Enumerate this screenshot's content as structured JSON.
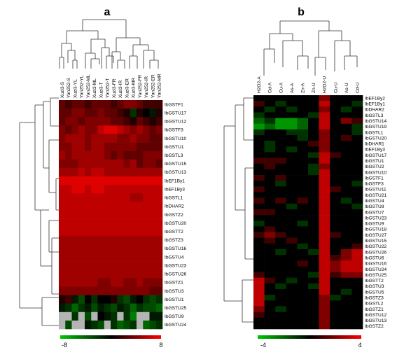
{
  "panel_a": {
    "letter": "a",
    "columns": [
      "Xuzi3-S",
      "Yan252-S",
      "Xuzi3-YL",
      "Yan252-YL",
      "Yan252-ML",
      "Xuzi3-ML",
      "Xuzi3-T",
      "Yan252-T",
      "Xuzi3-FR",
      "Xuzi3-IR",
      "Xuzi3-ER",
      "Xuzi3-MR",
      "Yan252-FR",
      "Yan252-IR",
      "Yan252-ER",
      "Yan252-MR"
    ],
    "rows": [
      "IbGSTF1",
      "IbGSTU17",
      "IbGSTU12",
      "IbGSTF3",
      "IbGSTU10",
      "IbGSTU1",
      "IbGSTL3",
      "IbGSTU15",
      "IbGSTU13",
      "IbEF1By1",
      "IbEF1By3",
      "IbGSTL1",
      "IbDHAR2",
      "IbGSTZ2",
      "IbGSTU20",
      "IbGSTT2",
      "IbGSTZ3",
      "IbGSTU16",
      "IbGSTU4",
      "IbGSTU23",
      "IbGSTU26",
      "IbGSTZ1",
      "IbGSTU3",
      "IbGSTU1",
      "IbGSTU25",
      "IbGSTU9",
      "IbGSTU24"
    ],
    "scale_min": "-8",
    "scale_max": "8",
    "values": [
      [
        3,
        2,
        3,
        3,
        2,
        3,
        3,
        3,
        2,
        3,
        4,
        4,
        3,
        2,
        2,
        2
      ],
      [
        3,
        3,
        4,
        4,
        3,
        3,
        4,
        3,
        3,
        2,
        1,
        -2,
        1,
        0,
        -1,
        1
      ],
      [
        3,
        4,
        4,
        3,
        4,
        4,
        4,
        4,
        3,
        3,
        2,
        1,
        3,
        2,
        1,
        2
      ],
      [
        4,
        3,
        4,
        5,
        4,
        4,
        6,
        7,
        7,
        6,
        5,
        4,
        5,
        4,
        3,
        4
      ],
      [
        4,
        5,
        5,
        5,
        4,
        5,
        5,
        5,
        5,
        4,
        4,
        5,
        4,
        4,
        3,
        3
      ],
      [
        4,
        4,
        5,
        5,
        4,
        5,
        5,
        4,
        4,
        4,
        4,
        4,
        3,
        3,
        3,
        3
      ],
      [
        5,
        4,
        5,
        5,
        5,
        5,
        5,
        4,
        3,
        4,
        3,
        3,
        3,
        4,
        4,
        4
      ],
      [
        4,
        4,
        4,
        5,
        5,
        5,
        5,
        5,
        5,
        5,
        4,
        5,
        3,
        4,
        4,
        3
      ],
      [
        5,
        5,
        5,
        6,
        5,
        6,
        6,
        5,
        5,
        5,
        5,
        5,
        5,
        5,
        5,
        5
      ],
      [
        7,
        7,
        7,
        7,
        7,
        7,
        7,
        7,
        7,
        7,
        7,
        7,
        7,
        7,
        7,
        7
      ],
      [
        6,
        6,
        7,
        7,
        6,
        7,
        7,
        6,
        6,
        6,
        6,
        6,
        6,
        6,
        6,
        6
      ],
      [
        6,
        6,
        6,
        6,
        6,
        6,
        6,
        6,
        6,
        6,
        6,
        5,
        5,
        6,
        6,
        6
      ],
      [
        6,
        6,
        6,
        6,
        6,
        6,
        6,
        6,
        6,
        6,
        6,
        6,
        6,
        6,
        6,
        6
      ],
      [
        6,
        6,
        6,
        6,
        6,
        6,
        6,
        6,
        6,
        6,
        6,
        6,
        6,
        6,
        6,
        6
      ],
      [
        6,
        6,
        6,
        6,
        6,
        6,
        6,
        6,
        6,
        6,
        6,
        6,
        6,
        6,
        6,
        6
      ],
      [
        6,
        6,
        6,
        6,
        6,
        6,
        6,
        6,
        6,
        6,
        6,
        6,
        6,
        6,
        6,
        6
      ],
      [
        5,
        5,
        5,
        5,
        5,
        5,
        5,
        5,
        5,
        5,
        5,
        5,
        5,
        5,
        5,
        5
      ],
      [
        5,
        5,
        5,
        5,
        5,
        5,
        5,
        5,
        5,
        5,
        5,
        5,
        5,
        5,
        5,
        5
      ],
      [
        5,
        5,
        5,
        5,
        5,
        5,
        5,
        5,
        5,
        5,
        5,
        5,
        5,
        5,
        5,
        5
      ],
      [
        5,
        5,
        5,
        5,
        5,
        5,
        5,
        5,
        5,
        5,
        5,
        5,
        5,
        5,
        5,
        5
      ],
      [
        5,
        5,
        5,
        5,
        5,
        5,
        5,
        5,
        5,
        5,
        5,
        5,
        5,
        5,
        5,
        5
      ],
      [
        5,
        5,
        5,
        5,
        5,
        5,
        4,
        4,
        5,
        5,
        4,
        4,
        5,
        4,
        4,
        4
      ],
      [
        4,
        4,
        4,
        4,
        4,
        4,
        4,
        4,
        4,
        4,
        4,
        4,
        4,
        4,
        3,
        3
      ],
      [
        1,
        2,
        -1,
        -3,
        0,
        -2,
        0,
        0,
        1,
        -2,
        -3,
        -1,
        0,
        -2,
        -3,
        -2
      ],
      [
        -1,
        -2,
        -4,
        -2,
        -1,
        -3,
        -1,
        -2,
        -3,
        -1,
        -2,
        -4,
        -2,
        -3,
        -3,
        -4
      ],
      [
        null,
        null,
        -2,
        null,
        -3,
        null,
        0,
        -1,
        -2,
        null,
        -2,
        -5,
        null,
        null,
        -1,
        -1
      ],
      [
        null,
        -3,
        null,
        null,
        -1,
        -2,
        -3,
        null,
        -2,
        -4,
        -3,
        -2,
        null,
        -4,
        -3,
        -2
      ]
    ]
  },
  "panel_b": {
    "letter": "b",
    "columns": [
      "H2O2-A",
      "Cd-A",
      "Cu-A",
      "As-A",
      "Zn-A",
      "Zn-U",
      "H2O2-U",
      "Cu-U",
      "As-U",
      "Cd-U"
    ],
    "rows": [
      "IbEF1By2",
      "IbEF1By1",
      "IbDHAR2",
      "IbGSTL3",
      "IbGSTU14",
      "IbGSTU19",
      "IbGSTL1",
      "IbGSTU20",
      "IbDHAR1",
      "IbEF1By3",
      "IbGSTU17",
      "IbGSTU1",
      "IbGSTU2",
      "IbGSTU10",
      "IbGSTF1",
      "IbGSTF3",
      "IbGSTU11",
      "IbGSTU21",
      "IbGSTU4",
      "IbGSTU8",
      "IbGSTU7",
      "IbGSTU23",
      "IbGSTU9",
      "IbGSTU18",
      "IbGSTU27",
      "IbGSTU15",
      "IbGSTU22",
      "IbGSTU26",
      "IbGSTU6",
      "IbGSTU16",
      "IbGSTU24",
      "IbGSTU25",
      "IbGSTT2",
      "IbGSTU3",
      "IbGSTU5",
      "IbGSTZ3",
      "IbGSTL2",
      "IbGSTZ1",
      "IbGSTU12",
      "IbGSTU13",
      "IbGSTZ2"
    ],
    "scale_min": "-4",
    "scale_max": "4",
    "values": [
      [
        0,
        0,
        0,
        0,
        0,
        0,
        2,
        0,
        0,
        0
      ],
      [
        1,
        0,
        -1,
        0,
        0,
        0,
        3,
        0,
        0,
        -1
      ],
      [
        0,
        -1,
        0,
        -1,
        0,
        0,
        2,
        0,
        -1,
        0
      ],
      [
        -1,
        0,
        0,
        0,
        0,
        -1,
        3,
        0,
        0,
        0
      ],
      [
        -2,
        -1,
        -3,
        -3,
        -2,
        0,
        3,
        0,
        2,
        1
      ],
      [
        -3,
        -2,
        -3,
        -3,
        -2,
        0,
        3,
        0,
        0,
        -1
      ],
      [
        -1,
        0,
        0,
        -1,
        -1,
        0,
        2,
        0,
        0,
        -1
      ],
      [
        0,
        0,
        0,
        0,
        -1,
        0,
        2,
        0,
        1,
        0
      ],
      [
        0,
        -1,
        0,
        0,
        0,
        1,
        2,
        0,
        0,
        0
      ],
      [
        0,
        -1,
        0,
        -1,
        0,
        0,
        2,
        0,
        0,
        0
      ],
      [
        0,
        0,
        0,
        0,
        0,
        -1,
        3,
        1,
        0,
        0
      ],
      [
        1,
        1,
        1,
        0,
        0,
        0,
        3,
        0,
        0,
        0
      ],
      [
        0,
        1,
        0,
        0,
        0,
        -1,
        2,
        0,
        0,
        0
      ],
      [
        0,
        0,
        0,
        0,
        0,
        -1,
        3,
        0,
        0,
        0
      ],
      [
        1,
        0,
        1,
        0,
        0,
        0,
        3,
        0,
        0,
        0
      ],
      [
        0,
        0,
        -1,
        0,
        0,
        0,
        3,
        0,
        0,
        -1
      ],
      [
        1,
        0,
        0,
        0,
        0,
        0,
        3,
        1,
        0,
        0
      ],
      [
        0,
        0,
        0,
        0,
        0,
        0,
        3,
        0,
        0,
        0
      ],
      [
        1,
        0,
        1,
        0,
        1,
        0,
        3,
        0,
        -1,
        0
      ],
      [
        0,
        0,
        0,
        -1,
        0,
        0,
        3,
        0,
        0,
        -1
      ],
      [
        1,
        1,
        0,
        0,
        0,
        0,
        3,
        0,
        0,
        0
      ],
      [
        0,
        0,
        0,
        0,
        0,
        0,
        3,
        0,
        0,
        0
      ],
      [
        -1,
        0,
        0,
        0,
        -1,
        0,
        3,
        0,
        0,
        0
      ],
      [
        0,
        1,
        0,
        0,
        0,
        0,
        3,
        0,
        0,
        0
      ],
      [
        1,
        2,
        1,
        0,
        0,
        0,
        3,
        1,
        0,
        0
      ],
      [
        0,
        1,
        0,
        1,
        0,
        0,
        3,
        0,
        0,
        0
      ],
      [
        0,
        0,
        0,
        0,
        -1,
        0,
        3,
        0,
        0,
        1
      ],
      [
        0,
        0,
        -1,
        0,
        0,
        -1,
        3,
        0,
        2,
        3
      ],
      [
        0,
        0,
        0,
        0,
        0,
        0,
        3,
        1,
        2,
        3
      ],
      [
        0,
        0,
        0,
        0,
        1,
        0,
        3,
        2,
        3,
        3
      ],
      [
        0,
        0,
        0,
        0,
        0,
        0,
        3,
        2,
        3,
        3
      ],
      [
        1,
        0,
        0,
        0,
        0,
        -1,
        3,
        1,
        2,
        2
      ],
      [
        3,
        1,
        0,
        -1,
        0,
        0,
        3,
        0,
        0,
        0
      ],
      [
        3,
        0,
        -1,
        0,
        0,
        -1,
        3,
        0,
        0,
        0
      ],
      [
        3,
        0,
        0,
        0,
        0,
        0,
        3,
        0,
        -1,
        0
      ],
      [
        3,
        -1,
        0,
        0,
        0,
        0,
        2,
        -1,
        0,
        0
      ],
      [
        3,
        0,
        0,
        0,
        0,
        0,
        2,
        0,
        0,
        0
      ],
      [
        2,
        0,
        -1,
        0,
        0,
        0,
        2,
        0,
        0,
        0
      ],
      [
        1,
        0,
        0,
        0,
        0,
        0,
        2,
        0,
        0,
        0
      ],
      [
        0,
        0,
        0,
        0,
        0,
        0,
        2,
        0,
        0,
        0
      ],
      [
        0,
        0,
        0,
        0,
        0,
        0,
        2,
        0,
        0,
        0
      ]
    ]
  }
}
